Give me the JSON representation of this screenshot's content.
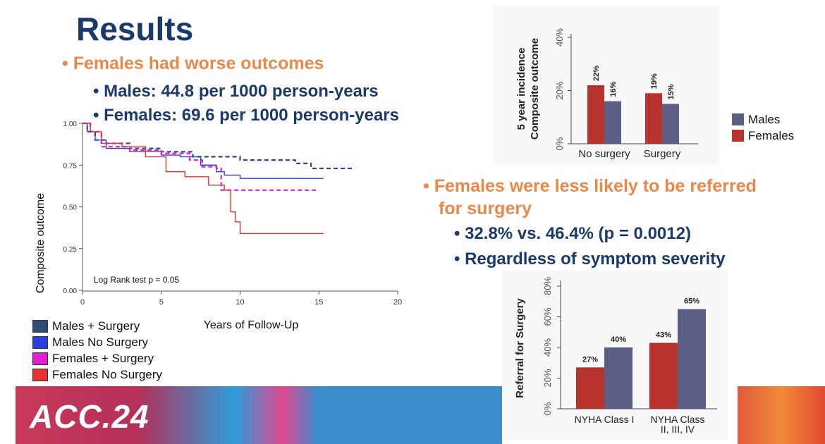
{
  "slide": {
    "title": "Results",
    "bullets_top": {
      "main": "Females had worse outcomes",
      "sub": [
        "Males: 44.8 per 1000 person-years",
        "Females: 69.6 per 1000 person-years"
      ]
    },
    "bullets_mid": {
      "main_line1": "Females were less likely to be referred",
      "main_line2": "for surgery",
      "sub": [
        "32.8% vs. 46.4% (p = 0.0012)",
        "Regardless of symptom severity"
      ]
    },
    "footer_logo": "ACC.24"
  },
  "colors": {
    "title": "#1a3a6b",
    "orange": "#e8894a",
    "males_bar": "#5b5f85",
    "females_bar": "#b8322e",
    "males_surgery": "#2e4d7a",
    "males_no_surgery": "#2a3fe0",
    "females_surgery": "#e020d0",
    "females_no_surgery": "#e83030"
  },
  "chart_data": [
    {
      "type": "line",
      "subtype": "kaplan-meier",
      "xlabel": "Years of Follow-Up",
      "ylabel": "Composite outcome",
      "xticks": [
        "0",
        "5",
        "10",
        "15",
        "20"
      ],
      "yticks": [
        "0.00",
        "0.25",
        "0.50",
        "0.75",
        "1.00"
      ],
      "xlim": [
        0,
        20
      ],
      "ylim": [
        0,
        1
      ],
      "annotation": "Log Rank test p = 0.05",
      "legend": [
        "Males + Surgery",
        "Males No Surgery",
        "Females + Surgery",
        "Females No Surgery"
      ],
      "series": [
        {
          "name": "Males + Surgery",
          "dash": true,
          "points": [
            [
              0,
              1.0
            ],
            [
              0.3,
              0.95
            ],
            [
              0.8,
              0.9
            ],
            [
              1.5,
              0.88
            ],
            [
              3,
              0.85
            ],
            [
              5,
              0.83
            ],
            [
              7,
              0.8
            ],
            [
              9,
              0.8
            ],
            [
              10,
              0.78
            ],
            [
              13.5,
              0.76
            ],
            [
              14.5,
              0.73
            ],
            [
              17.2,
              0.73
            ]
          ]
        },
        {
          "name": "Males No Surgery",
          "dash": false,
          "points": [
            [
              0,
              1.0
            ],
            [
              0.3,
              0.95
            ],
            [
              0.8,
              0.9
            ],
            [
              1.5,
              0.85
            ],
            [
              3,
              0.83
            ],
            [
              5,
              0.81
            ],
            [
              6.2,
              0.8
            ],
            [
              7.5,
              0.75
            ],
            [
              8.5,
              0.71
            ],
            [
              9,
              0.69
            ],
            [
              10,
              0.67
            ],
            [
              15.3,
              0.67
            ]
          ]
        },
        {
          "name": "Females + Surgery",
          "dash": true,
          "points": [
            [
              0,
              1.0
            ],
            [
              0.5,
              0.95
            ],
            [
              1.2,
              0.86
            ],
            [
              3,
              0.84
            ],
            [
              5,
              0.82
            ],
            [
              6.8,
              0.78
            ],
            [
              7.6,
              0.74
            ],
            [
              8.5,
              0.73
            ],
            [
              8.8,
              0.6
            ],
            [
              15,
              0.6
            ]
          ]
        },
        {
          "name": "Females No Surgery",
          "dash": false,
          "points": [
            [
              0,
              1.0
            ],
            [
              0.5,
              0.95
            ],
            [
              1.2,
              0.88
            ],
            [
              2.5,
              0.86
            ],
            [
              4,
              0.8
            ],
            [
              5.3,
              0.71
            ],
            [
              6.5,
              0.68
            ],
            [
              8,
              0.63
            ],
            [
              9,
              0.6
            ],
            [
              9.4,
              0.47
            ],
            [
              9.7,
              0.41
            ],
            [
              10,
              0.34
            ],
            [
              15.3,
              0.34
            ]
          ]
        }
      ]
    },
    {
      "type": "bar",
      "ylabel_line1": "5 year incidence",
      "ylabel_line2": "Composite outcome",
      "yticks": [
        "0%",
        "20%",
        "40%"
      ],
      "ylim": [
        0,
        40
      ],
      "categories": [
        "No surgery",
        "Surgery"
      ],
      "legend": [
        "Males",
        "Females"
      ],
      "legend_position": "right",
      "series": [
        {
          "name": "Females",
          "values": [
            22,
            19
          ],
          "labels": [
            "22%",
            "19%"
          ]
        },
        {
          "name": "Males",
          "values": [
            16,
            15
          ],
          "labels": [
            "16%",
            "15%"
          ]
        }
      ]
    },
    {
      "type": "bar",
      "ylabel": "Referral for Surgery",
      "yticks": [
        "0%",
        "20%",
        "40%",
        "60%",
        "80%"
      ],
      "ylim": [
        0,
        80
      ],
      "categories": [
        "NYHA Class I",
        "NYHA Class II, III, IV"
      ],
      "category_lines": [
        [
          "NYHA Class I"
        ],
        [
          "NYHA Class",
          "II, III, IV"
        ]
      ],
      "series": [
        {
          "name": "Females",
          "values": [
            27,
            43
          ],
          "labels": [
            "27%",
            "43%"
          ]
        },
        {
          "name": "Males",
          "values": [
            40,
            65
          ],
          "labels": [
            "40%",
            "65%"
          ]
        }
      ]
    }
  ]
}
